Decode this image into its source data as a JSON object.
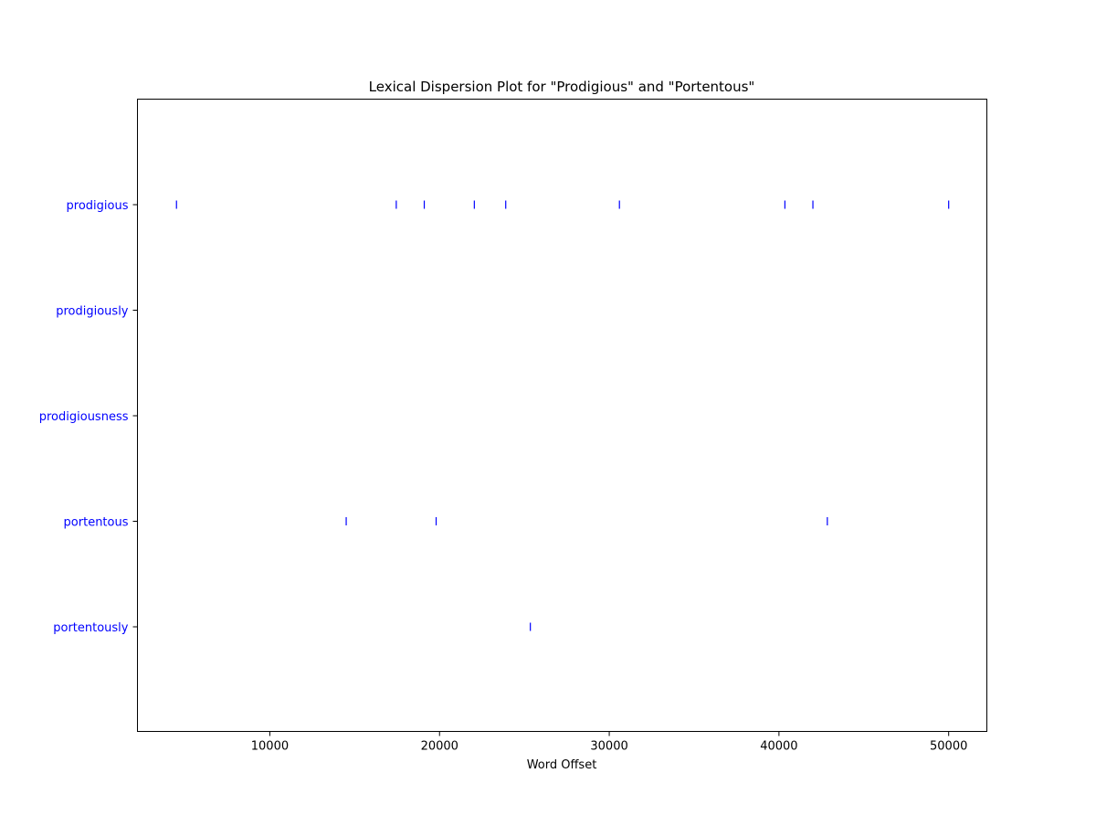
{
  "chart_data": {
    "type": "scatter",
    "title": "Lexical Dispersion Plot for \"Prodigious\" and \"Portentous\"",
    "xlabel": "Word Offset",
    "ylabel": "",
    "xlim": [
      2200,
      52250
    ],
    "xticks": [
      10000,
      20000,
      30000,
      40000,
      50000
    ],
    "xtick_labels": [
      "10000",
      "20000",
      "30000",
      "40000",
      "50000"
    ],
    "grid": false,
    "mark_color": "#0000ff",
    "label_color": "#0000ff",
    "categories": [
      "prodigious",
      "prodigiously",
      "prodigiousness",
      "portentous",
      "portentously"
    ],
    "series": [
      {
        "name": "prodigious",
        "x": [
          4500,
          17450,
          19100,
          22050,
          23900,
          30600,
          40350,
          42000,
          50000
        ]
      },
      {
        "name": "prodigiously",
        "x": []
      },
      {
        "name": "prodigiousness",
        "x": []
      },
      {
        "name": "portentous",
        "x": [
          14500,
          19800,
          42850
        ]
      },
      {
        "name": "portentously",
        "x": [
          25350
        ]
      }
    ]
  }
}
